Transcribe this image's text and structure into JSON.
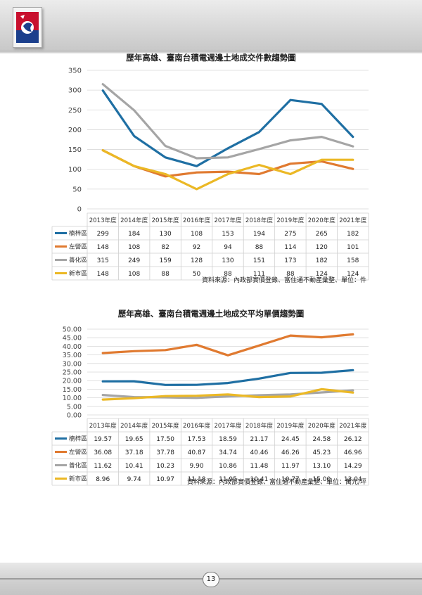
{
  "page": {
    "number": "13"
  },
  "colors": {
    "series": [
      "#1f6fa3",
      "#e07a30",
      "#a5a5a5",
      "#ebb825"
    ]
  },
  "chart_data": [
    {
      "type": "line",
      "title": "歷年高雄、臺南台積電週邊土地成交件數趨勢圖",
      "categories": [
        "2013年度",
        "2014年度",
        "2015年度",
        "2016年度",
        "2017年度",
        "2018年度",
        "2019年度",
        "2020年度",
        "2021年度"
      ],
      "ylim": [
        0,
        350
      ],
      "yticks": [
        "0",
        "50",
        "100",
        "150",
        "200",
        "250",
        "300",
        "350"
      ],
      "series": [
        {
          "name": "楠梓區",
          "values": [
            299,
            184,
            130,
            108,
            153,
            194,
            275,
            265,
            182
          ],
          "labels": [
            "299",
            "184",
            "130",
            "108",
            "153",
            "194",
            "275",
            "265",
            "182"
          ]
        },
        {
          "name": "左營區",
          "values": [
            148,
            108,
            82,
            92,
            94,
            88,
            114,
            120,
            101
          ],
          "labels": [
            "148",
            "108",
            "82",
            "92",
            "94",
            "88",
            "114",
            "120",
            "101"
          ]
        },
        {
          "name": "善化區",
          "values": [
            315,
            249,
            159,
            128,
            130,
            151,
            173,
            182,
            158
          ],
          "labels": [
            "315",
            "249",
            "159",
            "128",
            "130",
            "151",
            "173",
            "182",
            "158"
          ]
        },
        {
          "name": "新市區",
          "values": [
            148,
            108,
            88,
            50,
            88,
            111,
            88,
            124,
            124
          ],
          "labels": [
            "148",
            "108",
            "88",
            "50",
            "88",
            "111",
            "88",
            "124",
            "124"
          ]
        }
      ],
      "source": "資料來源：內政部實價登錄、富住通不動產彙整、單位：件"
    },
    {
      "type": "line",
      "title": "歷年高雄、臺南台積電週邊土地成交平均單價趨勢圖",
      "categories": [
        "2013年度",
        "2014年度",
        "2015年度",
        "2016年度",
        "2017年度",
        "2018年度",
        "2019年度",
        "2020年度",
        "2021年度"
      ],
      "ylim": [
        0,
        50
      ],
      "yticks": [
        "0.00",
        "5.00",
        "10.00",
        "15.00",
        "20.00",
        "25.00",
        "30.00",
        "35.00",
        "40.00",
        "45.00",
        "50.00"
      ],
      "series": [
        {
          "name": "楠梓區",
          "values": [
            19.57,
            19.65,
            17.5,
            17.53,
            18.59,
            21.17,
            24.45,
            24.58,
            26.12
          ],
          "labels": [
            "19.57",
            "19.65",
            "17.50",
            "17.53",
            "18.59",
            "21.17",
            "24.45",
            "24.58",
            "26.12"
          ]
        },
        {
          "name": "左營區",
          "values": [
            36.08,
            37.18,
            37.78,
            40.87,
            34.74,
            40.46,
            46.26,
            45.23,
            46.96
          ],
          "labels": [
            "36.08",
            "37.18",
            "37.78",
            "40.87",
            "34.74",
            "40.46",
            "46.26",
            "45.23",
            "46.96"
          ]
        },
        {
          "name": "善化區",
          "values": [
            11.62,
            10.41,
            10.23,
            9.9,
            10.86,
            11.48,
            11.97,
            13.1,
            14.29
          ],
          "labels": [
            "11.62",
            "10.41",
            "10.23",
            "9.90",
            "10.86",
            "11.48",
            "11.97",
            "13.10",
            "14.29"
          ]
        },
        {
          "name": "新市區",
          "values": [
            8.96,
            9.74,
            10.97,
            11.18,
            11.95,
            10.41,
            10.77,
            15.0,
            13.04
          ],
          "labels": [
            "8.96",
            "9.74",
            "10.97",
            "11.18",
            "11.95",
            "10.41",
            "10.77",
            "15.00",
            "13.04"
          ]
        }
      ],
      "source": "資料來源：內政部實價登錄、富住通不動產彙整、單位：萬元/坪"
    }
  ]
}
